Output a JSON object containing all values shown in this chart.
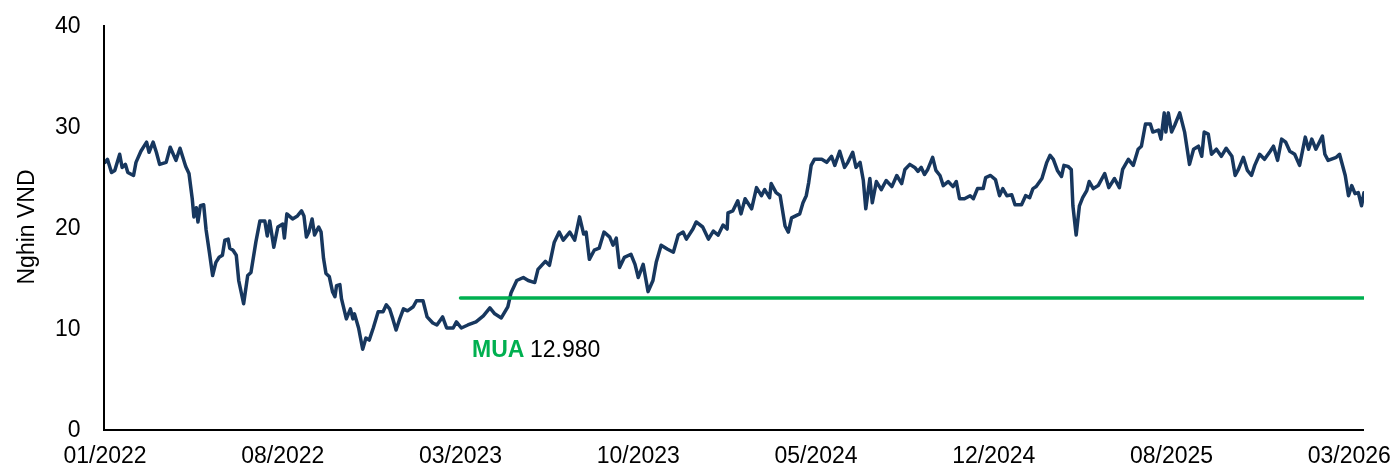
{
  "chart_data": {
    "type": "line",
    "ylabel": "Nghin VND",
    "xlim": [
      "2022-01-04",
      "2026-03-28"
    ],
    "xticks": [
      {
        "value": "2022-01-04",
        "label": "01/2022"
      },
      {
        "value": "2022-08-10",
        "label": "08/2022"
      },
      {
        "value": "2023-03-16",
        "label": "03/2023"
      },
      {
        "value": "2023-10-20",
        "label": "10/2023"
      },
      {
        "value": "2024-05-25",
        "label": "05/2024"
      },
      {
        "value": "2024-12-29",
        "label": "12/2024"
      },
      {
        "value": "2025-08-04",
        "label": "08/2025"
      },
      {
        "value": "2026-03-10",
        "label": "03/2026"
      }
    ],
    "ylim": [
      0,
      40
    ],
    "yticks": [
      0,
      10,
      20,
      30,
      40
    ],
    "series": [
      {
        "color": "#17375e",
        "x": [
          "2022-01-04",
          "2022-01-07",
          "2022-01-12",
          "2022-01-16",
          "2022-01-22",
          "2022-01-25",
          "2022-01-29",
          "2022-02-01",
          "2022-02-08",
          "2022-02-11",
          "2022-02-17",
          "2022-02-24",
          "2022-02-27",
          "2022-03-04",
          "2022-03-08",
          "2022-03-12",
          "2022-03-20",
          "2022-03-25",
          "2022-04-01",
          "2022-04-06",
          "2022-04-13",
          "2022-04-17",
          "2022-04-21",
          "2022-04-23",
          "2022-04-26",
          "2022-04-28",
          "2022-05-01",
          "2022-05-05",
          "2022-05-08",
          "2022-05-12",
          "2022-05-16",
          "2022-05-20",
          "2022-05-24",
          "2022-05-28",
          "2022-05-31",
          "2022-06-04",
          "2022-06-06",
          "2022-06-10",
          "2022-06-14",
          "2022-06-17",
          "2022-06-23",
          "2022-06-28",
          "2022-07-02",
          "2022-07-08",
          "2022-07-13",
          "2022-07-19",
          "2022-07-22",
          "2022-07-25",
          "2022-07-30",
          "2022-08-04",
          "2022-08-10",
          "2022-08-12",
          "2022-08-15",
          "2022-08-22",
          "2022-08-28",
          "2022-09-02",
          "2022-09-05",
          "2022-09-08",
          "2022-09-11",
          "2022-09-15",
          "2022-09-18",
          "2022-09-23",
          "2022-09-26",
          "2022-09-29",
          "2022-10-02",
          "2022-10-06",
          "2022-10-10",
          "2022-10-13",
          "2022-10-15",
          "2022-10-19",
          "2022-10-21",
          "2022-10-27",
          "2022-11-01",
          "2022-11-04",
          "2022-11-06",
          "2022-11-11",
          "2022-11-16",
          "2022-11-20",
          "2022-11-24",
          "2022-11-29",
          "2022-12-05",
          "2022-12-11",
          "2022-12-15",
          "2022-12-19",
          "2022-12-23",
          "2022-12-27",
          "2022-12-31",
          "2023-01-05",
          "2023-01-10",
          "2023-01-17",
          "2023-01-21",
          "2023-01-29",
          "2023-02-03",
          "2023-02-10",
          "2023-02-15",
          "2023-02-22",
          "2023-02-27",
          "2023-03-07",
          "2023-03-11",
          "2023-03-17",
          "2023-03-25",
          "2023-04-04",
          "2023-04-13",
          "2023-04-21",
          "2023-04-27",
          "2023-05-05",
          "2023-05-13",
          "2023-05-17",
          "2023-05-24",
          "2023-06-01",
          "2023-06-07",
          "2023-06-15",
          "2023-06-19",
          "2023-06-28",
          "2023-07-03",
          "2023-07-09",
          "2023-07-15",
          "2023-07-20",
          "2023-07-28",
          "2023-08-03",
          "2023-08-09",
          "2023-08-14",
          "2023-08-17",
          "2023-08-21",
          "2023-08-27",
          "2023-09-02",
          "2023-09-08",
          "2023-09-15",
          "2023-09-19",
          "2023-09-23",
          "2023-09-27",
          "2023-10-03",
          "2023-10-11",
          "2023-10-16",
          "2023-10-20",
          "2023-10-26",
          "2023-11-01",
          "2023-11-07",
          "2023-11-11",
          "2023-11-17",
          "2023-11-25",
          "2023-12-02",
          "2023-12-08",
          "2023-12-14",
          "2023-12-18",
          "2023-12-26",
          "2023-12-30",
          "2024-01-07",
          "2024-01-14",
          "2024-01-20",
          "2024-01-26",
          "2024-02-01",
          "2024-02-06",
          "2024-02-07",
          "2024-02-13",
          "2024-02-19",
          "2024-02-23",
          "2024-02-28",
          "2024-03-07",
          "2024-03-13",
          "2024-03-19",
          "2024-03-23",
          "2024-03-29",
          "2024-03-31",
          "2024-04-06",
          "2024-04-11",
          "2024-04-17",
          "2024-04-21",
          "2024-04-25",
          "2024-05-05",
          "2024-05-09",
          "2024-05-13",
          "2024-05-16",
          "2024-05-19",
          "2024-05-23",
          "2024-06-01",
          "2024-06-07",
          "2024-06-13",
          "2024-06-17",
          "2024-06-23",
          "2024-06-29",
          "2024-07-03",
          "2024-07-09",
          "2024-07-13",
          "2024-07-18",
          "2024-07-22",
          "2024-07-25",
          "2024-07-30",
          "2024-08-02",
          "2024-08-07",
          "2024-08-13",
          "2024-08-19",
          "2024-08-26",
          "2024-09-01",
          "2024-09-07",
          "2024-09-11",
          "2024-09-17",
          "2024-09-23",
          "2024-09-27",
          "2024-10-01",
          "2024-10-05",
          "2024-10-09",
          "2024-10-15",
          "2024-10-19",
          "2024-10-24",
          "2024-10-28",
          "2024-11-03",
          "2024-11-09",
          "2024-11-13",
          "2024-11-17",
          "2024-11-23",
          "2024-11-30",
          "2024-12-04",
          "2024-12-09",
          "2024-12-16",
          "2024-12-19",
          "2024-12-25",
          "2024-12-31",
          "2025-01-05",
          "2025-01-09",
          "2025-01-14",
          "2025-01-20",
          "2025-01-24",
          "2025-02-01",
          "2025-02-06",
          "2025-02-11",
          "2025-02-15",
          "2025-02-19",
          "2025-02-26",
          "2025-03-04",
          "2025-03-08",
          "2025-03-12",
          "2025-03-17",
          "2025-03-22",
          "2025-03-25",
          "2025-03-30",
          "2025-04-03",
          "2025-04-05",
          "2025-04-09",
          "2025-04-13",
          "2025-04-17",
          "2025-04-22",
          "2025-04-25",
          "2025-04-30",
          "2025-05-06",
          "2025-05-14",
          "2025-05-19",
          "2025-05-26",
          "2025-06-01",
          "2025-06-05",
          "2025-06-12",
          "2025-06-18",
          "2025-06-24",
          "2025-06-28",
          "2025-07-03",
          "2025-07-09",
          "2025-07-12",
          "2025-07-19",
          "2025-07-22",
          "2025-07-26",
          "2025-07-28",
          "2025-07-31",
          "2025-08-04",
          "2025-08-08",
          "2025-08-14",
          "2025-08-20",
          "2025-08-26",
          "2025-08-31",
          "2025-09-06",
          "2025-09-10",
          "2025-09-13",
          "2025-09-18",
          "2025-09-22",
          "2025-09-28",
          "2025-10-04",
          "2025-10-10",
          "2025-10-17",
          "2025-10-21",
          "2025-10-25",
          "2025-10-31",
          "2025-11-05",
          "2025-11-10",
          "2025-11-14",
          "2025-11-20",
          "2025-11-26",
          "2025-12-03",
          "2025-12-07",
          "2025-12-12",
          "2025-12-17",
          "2025-12-22",
          "2025-12-27",
          "2026-01-02",
          "2026-01-08",
          "2026-01-15",
          "2026-01-19",
          "2026-01-23",
          "2026-01-28",
          "2026-02-05",
          "2026-02-08",
          "2026-02-12",
          "2026-02-22",
          "2026-02-26",
          "2026-03-05",
          "2026-03-09",
          "2026-03-13",
          "2026-03-17",
          "2026-03-21",
          "2026-03-25",
          "2026-03-28"
        ],
        "values": [
          26.4,
          26.7,
          25.4,
          25.6,
          27.2,
          25.9,
          26.2,
          25.4,
          25.1,
          26.4,
          27.5,
          28.4,
          27.4,
          28.4,
          27.4,
          26.2,
          26.4,
          27.9,
          26.6,
          27.8,
          26.0,
          25.3,
          22.8,
          21.0,
          21.9,
          20.5,
          22.1,
          22.2,
          19.7,
          17.5,
          15.2,
          16.5,
          17.0,
          17.2,
          18.7,
          18.8,
          17.9,
          17.7,
          17.2,
          14.7,
          12.4,
          15.2,
          15.5,
          18.5,
          20.6,
          20.6,
          19.1,
          20.6,
          18.0,
          20.0,
          20.3,
          18.9,
          21.3,
          20.8,
          21.1,
          21.6,
          21.1,
          19.0,
          19.5,
          20.8,
          19.2,
          20.0,
          19.5,
          16.9,
          15.4,
          15.1,
          13.6,
          13.1,
          14.2,
          14.3,
          12.9,
          10.9,
          11.9,
          10.9,
          11.4,
          10.0,
          7.9,
          9.0,
          8.8,
          10.0,
          11.6,
          11.6,
          12.3,
          11.9,
          10.9,
          9.8,
          10.8,
          11.9,
          11.7,
          12.1,
          12.7,
          12.7,
          11.1,
          10.5,
          10.3,
          11.1,
          10.0,
          10.0,
          10.6,
          10.0,
          10.3,
          10.6,
          11.2,
          12.0,
          11.4,
          11.0,
          12.1,
          13.5,
          14.7,
          15.0,
          14.7,
          14.5,
          15.8,
          16.6,
          16.2,
          18.5,
          19.5,
          18.7,
          19.5,
          18.7,
          21.0,
          19.3,
          19.5,
          16.8,
          17.7,
          17.9,
          19.5,
          19.0,
          18.2,
          18.9,
          16.0,
          17.0,
          17.3,
          16.3,
          15.0,
          16.3,
          13.6,
          14.7,
          16.5,
          18.2,
          17.8,
          17.5,
          19.2,
          19.5,
          18.8,
          19.8,
          20.5,
          20.0,
          18.8,
          19.6,
          19.2,
          20.2,
          19.8,
          21.4,
          21.6,
          22.6,
          21.3,
          22.8,
          21.8,
          23.9,
          23.1,
          23.7,
          22.9,
          24.3,
          23.4,
          23.1,
          20.1,
          19.5,
          20.9,
          21.3,
          22.4,
          23.1,
          24.4,
          26.1,
          26.7,
          26.7,
          26.4,
          27.0,
          26.1,
          27.5,
          25.9,
          26.4,
          27.4,
          25.9,
          26.4,
          24.6,
          21.8,
          24.8,
          22.4,
          24.5,
          23.7,
          24.6,
          24.0,
          25.1,
          24.3,
          25.7,
          26.2,
          25.9,
          25.5,
          25.9,
          25.2,
          25.7,
          26.9,
          25.6,
          25.1,
          24.1,
          24.5,
          24.0,
          24.5,
          22.8,
          22.8,
          23.1,
          22.8,
          23.8,
          23.8,
          24.9,
          25.1,
          24.7,
          23.1,
          23.8,
          23.1,
          23.2,
          22.2,
          22.2,
          23.1,
          22.9,
          23.8,
          24.0,
          24.8,
          26.4,
          27.1,
          26.7,
          25.6,
          25.0,
          26.1,
          26.0,
          25.7,
          22.1,
          19.2,
          22.1,
          22.9,
          23.6,
          24.5,
          23.8,
          24.1,
          25.3,
          23.9,
          24.8,
          23.9,
          25.7,
          26.7,
          26.1,
          27.7,
          28.0,
          30.2,
          30.2,
          29.4,
          29.6,
          28.7,
          31.3,
          29.4,
          31.3,
          29.4,
          30.1,
          31.3,
          29.4,
          26.2,
          27.7,
          28.0,
          27.0,
          29.4,
          29.2,
          27.2,
          27.7,
          27.0,
          27.8,
          27.0,
          25.1,
          25.7,
          26.9,
          25.6,
          25.1,
          26.1,
          27.2,
          26.7,
          27.5,
          28.0,
          26.6,
          28.7,
          28.4,
          27.5,
          27.2,
          26.1,
          28.9,
          27.7,
          28.7,
          27.7,
          29.0,
          27.2,
          26.6,
          26.9,
          27.2,
          25.1,
          23.1,
          24.1,
          23.3,
          23.4,
          22.1,
          23.4
        ]
      },
      {
        "name": "MUA",
        "color": "#00b050",
        "x": [
          "2023-03-16",
          "2026-03-28"
        ],
        "values": [
          12.98,
          12.98
        ]
      }
    ],
    "annotations": [
      "12.980"
    ]
  }
}
